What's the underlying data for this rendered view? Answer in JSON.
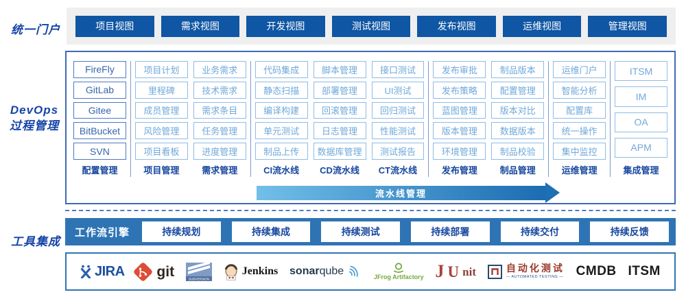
{
  "portal": {
    "label": "统一门户",
    "views": [
      "项目视图",
      "需求视图",
      "开发视图",
      "测试视图",
      "发布视图",
      "运维视图",
      "管理视图"
    ]
  },
  "process": {
    "label_line1": "DevOps",
    "label_line2": "过程管理",
    "pipeline_arrow_label": "流水线管理",
    "columns": [
      {
        "title": "配置管理",
        "group": 0,
        "variant": "dark",
        "items": [
          "FireFly",
          "GitLab",
          "Gitee",
          "BitBucket",
          "SVN"
        ]
      },
      {
        "title": "项目管理",
        "group": 1,
        "items": [
          "项目计划",
          "里程碑",
          "成员管理",
          "风险管理",
          "项目看板"
        ]
      },
      {
        "title": "需求管理",
        "group": 1,
        "items": [
          "业务需求",
          "技术需求",
          "需求条目",
          "任务管理",
          "进度管理"
        ]
      },
      {
        "title": "CI流水线",
        "group": 2,
        "items": [
          "代码集成",
          "静态扫描",
          "编译构建",
          "单元测试",
          "制品上传"
        ]
      },
      {
        "title": "CD流水线",
        "group": 2,
        "items": [
          "脚本管理",
          "部署管理",
          "回滚管理",
          "日志管理",
          "数据库管理"
        ]
      },
      {
        "title": "CT流水线",
        "group": 2,
        "items": [
          "接口测试",
          "UI测试",
          "回归测试",
          "性能测试",
          "测试报告"
        ]
      },
      {
        "title": "发布管理",
        "group": 3,
        "items": [
          "发布审批",
          "发布策略",
          "蓝图管理",
          "版本管理",
          "环境管理"
        ]
      },
      {
        "title": "制品管理",
        "group": 3,
        "items": [
          "制品版本",
          "配置管理",
          "版本对比",
          "数据版本",
          "制品校验"
        ]
      },
      {
        "title": "运维管理",
        "group": 4,
        "items": [
          "运维门户",
          "智能分析",
          "配置库",
          "统一操作",
          "集中监控"
        ]
      },
      {
        "title": "集成管理",
        "group": 5,
        "variant": "tall",
        "items": [
          "ITSM",
          "IM",
          "OA",
          "APM"
        ]
      }
    ]
  },
  "tools": {
    "label": "工具集成",
    "workflow_engine": "工作流引擎",
    "stages": [
      "持续规划",
      "持续集成",
      "持续测试",
      "持续部署",
      "持续交付",
      "持续反馈"
    ],
    "logos": {
      "jira": "JIRA",
      "git": "git",
      "subversion": "SUBVERSION",
      "jenkins": "Jenkins",
      "sonar_bold": "sonar",
      "sonar_light": "qube",
      "jfrog": "JFrog Artifactory",
      "junit_j": "J",
      "junit_u": "U",
      "junit_nit": "nit",
      "autotest": "自动化测试",
      "autotest_sub": "— AUTOMATED TESTING —",
      "cmdb": "CMDB",
      "itsm": "ITSM"
    }
  },
  "colors": {
    "primary_button": "#0f56a4",
    "section_label": "#1544a8",
    "panel_border": "#3f6ab5",
    "light_box_border": "#8fbbe5",
    "light_box_text": "#6fa8da",
    "dark_box_border": "#4d79c0",
    "dark_box_text": "#3566ae",
    "column_title": "#17479e",
    "workflow_bar": "#2e74b5",
    "arrow_gradient_start": "#72bfe8",
    "arrow_gradient_end": "#1b6cb2"
  },
  "icons": {
    "jira-icon": "blue acrobat X mark",
    "git-icon": "orange rotated square with branch",
    "subversion-icon": "blue box with white swoosh stripes",
    "jenkins-butler-icon": "butler face with red bowtie",
    "sonarqube-waves-icon": "three radiating arcs",
    "jfrog-circle-icon": "green circle over curve",
    "autotest-gate-icon": "framed red gate glyph"
  }
}
